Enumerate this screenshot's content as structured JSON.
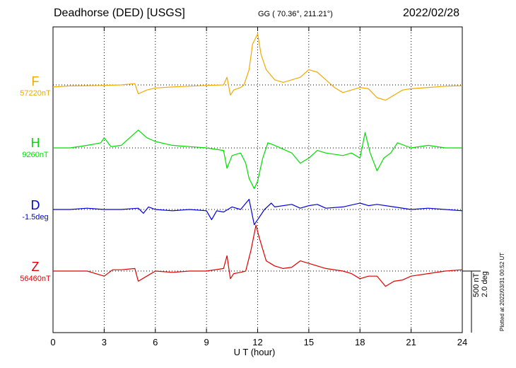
{
  "header": {
    "station": "Deadhorse (DED)  [USGS]",
    "coords": "GG ( 70.36°, 211.21°)",
    "date": "2022/02/28"
  },
  "side": {
    "scale_line1": "500 nT",
    "scale_line2": "2.0 deg",
    "plotted": "Plotted at 2022/03/31 00:52 UT"
  },
  "chart_data": {
    "type": "line",
    "title": "",
    "xlabel": "U T (hour)",
    "ylabel": "",
    "xlim": [
      0,
      24
    ],
    "xticks": [
      "0",
      "3",
      "6",
      "9",
      "12",
      "15",
      "18",
      "21",
      "24"
    ],
    "grid": true,
    "series": [
      {
        "name": "F",
        "baseline_label": "57220nT",
        "color": "#f2a900",
        "points": [
          [
            0,
            -8
          ],
          [
            1,
            -4
          ],
          [
            2,
            -3
          ],
          [
            3,
            -2
          ],
          [
            4,
            0
          ],
          [
            4.8,
            5
          ],
          [
            5,
            -35
          ],
          [
            5.5,
            -20
          ],
          [
            6,
            -12
          ],
          [
            7,
            -8
          ],
          [
            8,
            -5
          ],
          [
            9,
            -2
          ],
          [
            10,
            0
          ],
          [
            10.2,
            30
          ],
          [
            10.4,
            -40
          ],
          [
            10.6,
            -20
          ],
          [
            11,
            -10
          ],
          [
            11.2,
            0
          ],
          [
            11.5,
            60
          ],
          [
            11.7,
            160
          ],
          [
            12,
            200
          ],
          [
            12.2,
            120
          ],
          [
            12.5,
            60
          ],
          [
            13,
            20
          ],
          [
            13.5,
            10
          ],
          [
            14,
            20
          ],
          [
            14.5,
            30
          ],
          [
            15,
            60
          ],
          [
            15.5,
            50
          ],
          [
            16,
            20
          ],
          [
            16.5,
            -10
          ],
          [
            17,
            -30
          ],
          [
            17.5,
            -20
          ],
          [
            18,
            -10
          ],
          [
            18.5,
            -15
          ],
          [
            19,
            -50
          ],
          [
            19.5,
            -60
          ],
          [
            20,
            -40
          ],
          [
            20.5,
            -20
          ],
          [
            21,
            -15
          ],
          [
            22,
            -10
          ],
          [
            23,
            -5
          ],
          [
            24,
            -3
          ]
        ]
      },
      {
        "name": "H",
        "baseline_label": "9260nT",
        "color": "#00dd00",
        "points": [
          [
            0,
            0
          ],
          [
            1,
            0
          ],
          [
            2,
            10
          ],
          [
            2.8,
            20
          ],
          [
            3,
            40
          ],
          [
            3.4,
            5
          ],
          [
            4,
            10
          ],
          [
            5,
            70
          ],
          [
            5.5,
            40
          ],
          [
            6,
            25
          ],
          [
            7,
            10
          ],
          [
            8,
            5
          ],
          [
            9,
            0
          ],
          [
            10,
            -10
          ],
          [
            10.2,
            -80
          ],
          [
            10.5,
            -30
          ],
          [
            11,
            -20
          ],
          [
            11.3,
            -60
          ],
          [
            11.5,
            -120
          ],
          [
            11.8,
            -160
          ],
          [
            12,
            -130
          ],
          [
            12.3,
            -40
          ],
          [
            12.6,
            20
          ],
          [
            13,
            10
          ],
          [
            14,
            -20
          ],
          [
            14.5,
            -60
          ],
          [
            15,
            -40
          ],
          [
            15.5,
            -10
          ],
          [
            16,
            -20
          ],
          [
            17,
            -30
          ],
          [
            17.5,
            -20
          ],
          [
            18,
            -40
          ],
          [
            18.3,
            60
          ],
          [
            18.6,
            -20
          ],
          [
            19,
            -90
          ],
          [
            19.4,
            -40
          ],
          [
            19.8,
            -20
          ],
          [
            20.2,
            20
          ],
          [
            21,
            0
          ],
          [
            22,
            10
          ],
          [
            23,
            0
          ],
          [
            24,
            0
          ]
        ]
      },
      {
        "name": "D",
        "baseline_label": "-1.5deg",
        "color": "#0000dd",
        "points": [
          [
            0,
            0
          ],
          [
            1,
            0
          ],
          [
            2,
            5
          ],
          [
            3,
            0
          ],
          [
            4,
            0
          ],
          [
            5,
            5
          ],
          [
            5.3,
            -15
          ],
          [
            5.6,
            10
          ],
          [
            6,
            0
          ],
          [
            7,
            -5
          ],
          [
            8,
            0
          ],
          [
            9,
            -5
          ],
          [
            9.3,
            -40
          ],
          [
            9.6,
            -5
          ],
          [
            10,
            -10
          ],
          [
            10.5,
            10
          ],
          [
            11,
            0
          ],
          [
            11.5,
            40
          ],
          [
            11.8,
            -60
          ],
          [
            12,
            -40
          ],
          [
            12.4,
            0
          ],
          [
            12.8,
            25
          ],
          [
            13,
            10
          ],
          [
            14,
            20
          ],
          [
            14.5,
            5
          ],
          [
            15,
            15
          ],
          [
            15.5,
            20
          ],
          [
            16,
            5
          ],
          [
            17,
            10
          ],
          [
            18,
            25
          ],
          [
            18.5,
            15
          ],
          [
            19,
            20
          ],
          [
            20,
            10
          ],
          [
            21,
            0
          ],
          [
            22,
            5
          ],
          [
            23,
            0
          ],
          [
            24,
            -5
          ]
        ]
      },
      {
        "name": "Z",
        "baseline_label": "56460nT",
        "color": "#e00000",
        "points": [
          [
            0,
            0
          ],
          [
            1,
            0
          ],
          [
            2,
            0
          ],
          [
            3,
            -20
          ],
          [
            3.5,
            5
          ],
          [
            4,
            5
          ],
          [
            4.8,
            10
          ],
          [
            5,
            -40
          ],
          [
            5.5,
            -20
          ],
          [
            6,
            0
          ],
          [
            7,
            -5
          ],
          [
            8,
            0
          ],
          [
            9,
            0
          ],
          [
            10,
            10
          ],
          [
            10.2,
            60
          ],
          [
            10.4,
            -30
          ],
          [
            10.6,
            -10
          ],
          [
            11,
            -5
          ],
          [
            11.3,
            0
          ],
          [
            11.6,
            80
          ],
          [
            11.9,
            180
          ],
          [
            12.1,
            130
          ],
          [
            12.5,
            40
          ],
          [
            13,
            20
          ],
          [
            13.5,
            10
          ],
          [
            14,
            15
          ],
          [
            14.5,
            40
          ],
          [
            15,
            30
          ],
          [
            15.5,
            20
          ],
          [
            16,
            10
          ],
          [
            17,
            0
          ],
          [
            17.5,
            -10
          ],
          [
            18,
            -30
          ],
          [
            18.5,
            -20
          ],
          [
            19,
            -20
          ],
          [
            19.5,
            -60
          ],
          [
            20,
            -40
          ],
          [
            20.5,
            -35
          ],
          [
            21,
            -20
          ],
          [
            22,
            -10
          ],
          [
            23,
            0
          ],
          [
            24,
            5
          ]
        ]
      }
    ]
  }
}
